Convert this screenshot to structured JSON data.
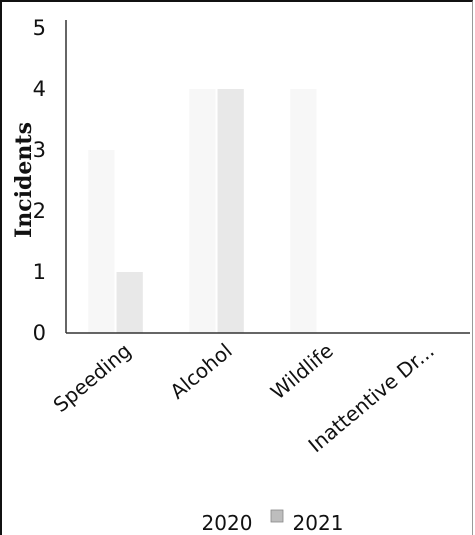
{
  "chart_data": {
    "type": "bar",
    "title": "",
    "xlabel": "",
    "ylabel": "Incidents",
    "ylim": [
      0,
      5
    ],
    "yticks": [
      0,
      1,
      2,
      3,
      4,
      5
    ],
    "categories": [
      "Speeding",
      "Alcohol",
      "Wildlife",
      "Inattentive Dr..."
    ],
    "series": [
      {
        "name": "2020",
        "values": [
          3,
          4,
          4,
          0
        ],
        "color": "#e8e8e8"
      },
      {
        "name": "2021",
        "values": [
          1,
          4,
          0,
          0
        ],
        "color": "#bdbdbd"
      }
    ],
    "grid": false,
    "legend_position": "bottom"
  }
}
